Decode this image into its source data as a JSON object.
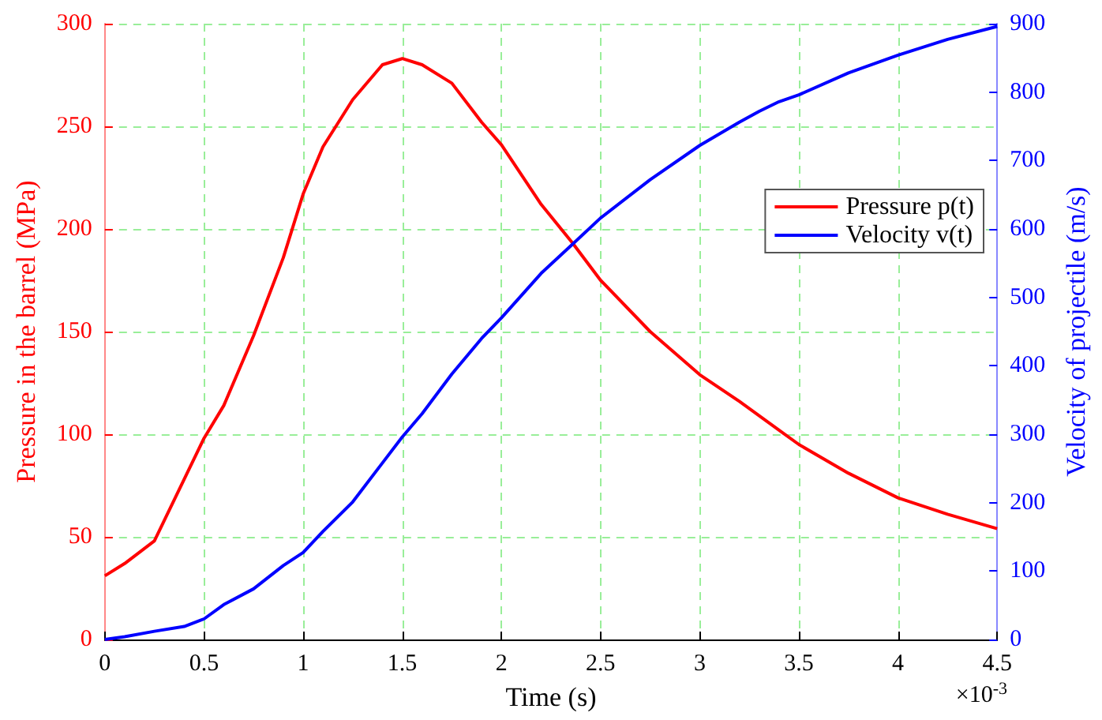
{
  "chart_data": {
    "type": "line",
    "xlabel": "Time (s)",
    "ylabel": "Pressure in the barrel (MPa)",
    "y2label": "Velocity of projectile (m/s)",
    "annotations": [
      "×10$^{-3}$"
    ],
    "x": [
      0,
      0.1,
      0.25,
      0.4,
      0.5,
      0.6,
      0.75,
      0.9,
      1.0,
      1.1,
      1.25,
      1.4,
      1.5,
      1.6,
      1.75,
      1.9,
      2.0,
      2.2,
      2.36,
      2.5,
      2.75,
      3.0,
      3.2,
      3.3,
      3.4,
      3.5,
      3.75,
      4.0,
      4.25,
      4.5
    ],
    "series": [
      {
        "name": "Pressure p(t)",
        "color": "#ff0000",
        "values": [
          31,
          37,
          48,
          78,
          98,
          114,
          148,
          186,
          217,
          240,
          263,
          280,
          283,
          280,
          271,
          252,
          241,
          212,
          193,
          175,
          150,
          129,
          116,
          109,
          102,
          95,
          81,
          69,
          61,
          54
        ]
      },
      {
        "name": "Velocity v(t)",
        "color": "#0000ff",
        "axis": "y2",
        "values": [
          0,
          4,
          12,
          19,
          30,
          51,
          74,
          108,
          127,
          158,
          201,
          258,
          296,
          330,
          388,
          440,
          470,
          535,
          578,
          616,
          672,
          722,
          756,
          772,
          786,
          796,
          828,
          854,
          877,
          896
        ]
      }
    ],
    "xlim": [
      0,
      4.5
    ],
    "xticks": [
      0,
      0.5,
      1,
      1.5,
      2,
      2.5,
      3,
      3.5,
      4,
      4.5
    ],
    "ylim": [
      0,
      300
    ],
    "yticks": [
      0,
      50,
      100,
      150,
      200,
      250,
      300
    ],
    "y2lim": [
      0,
      900
    ],
    "y2ticks": [
      0,
      100,
      200,
      300,
      400,
      500,
      600,
      700,
      800,
      900
    ],
    "grid": true,
    "legend": "right",
    "marker": "none",
    "line_style": "solid"
  }
}
